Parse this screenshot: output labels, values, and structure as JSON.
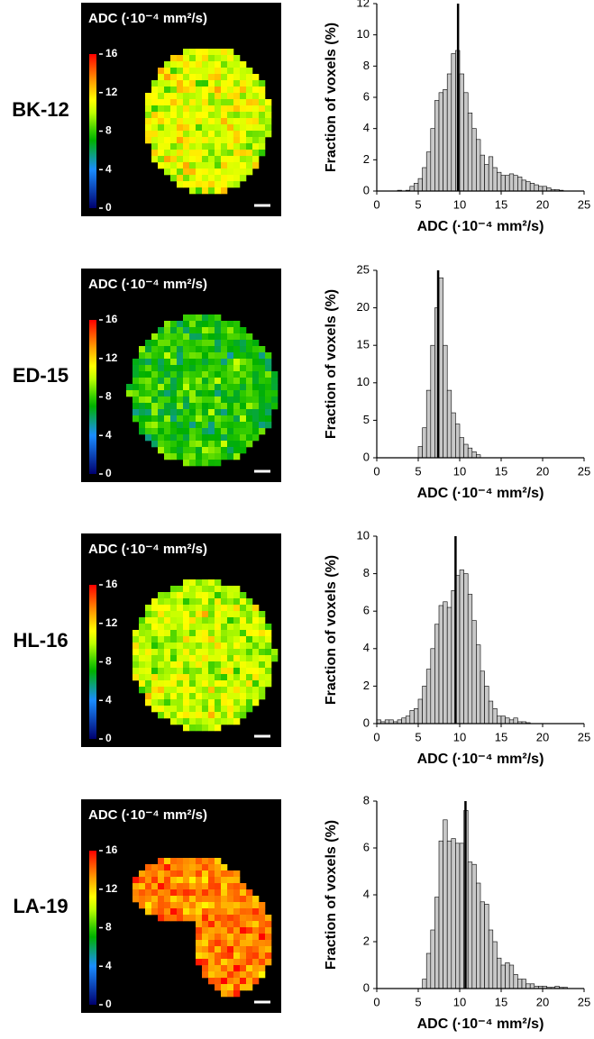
{
  "chart_data": [
    {
      "type": "histogram",
      "label": "BK-12",
      "map": {
        "title": "ADC (·10⁻⁴ mm²/s)",
        "colorbar_lim": [
          0,
          16
        ],
        "colorbar_ticks": [
          0,
          4,
          8,
          12,
          16
        ]
      },
      "xlabel": "ADC (·10⁻⁴ mm²/s)",
      "ylabel": "Fraction of voxels (%)",
      "color": "#c8c8c8",
      "bins": [
        2.5,
        3,
        3.5,
        4,
        4.5,
        5,
        5.5,
        6,
        6.5,
        7,
        7.5,
        8,
        8.5,
        9,
        9.5,
        10,
        10.5,
        11,
        11.5,
        12,
        12.5,
        13,
        13.5,
        14,
        14.5,
        15,
        15.5,
        16,
        16.5,
        17,
        17.5,
        18,
        18.5,
        19,
        19.5,
        20,
        20.5,
        21,
        21.5,
        22,
        22.5
      ],
      "values": [
        0.05,
        0,
        0.05,
        0.3,
        0.5,
        0.8,
        1.5,
        2.5,
        4,
        5.8,
        6.3,
        6.5,
        7.5,
        8.8,
        9,
        7.5,
        6.3,
        5,
        4,
        3.3,
        2.3,
        1.7,
        2.2,
        1.5,
        1.2,
        1,
        1,
        1.1,
        1,
        0.9,
        0.7,
        0.6,
        0.5,
        0.4,
        0.3,
        0.3,
        0.2,
        0.1,
        0.1,
        0.05
      ],
      "reference_line": 9.8,
      "xlim": [
        0,
        25
      ],
      "xticks": [
        0,
        5,
        10,
        15,
        20,
        25
      ],
      "ylim": [
        0,
        12
      ],
      "yticks": [
        0,
        2,
        4,
        6,
        8,
        10,
        12
      ]
    },
    {
      "type": "histogram",
      "label": "ED-15",
      "map": {
        "title": "ADC (·10⁻⁴ mm²/s)",
        "colorbar_lim": [
          0,
          16
        ],
        "colorbar_ticks": [
          0,
          4,
          8,
          12,
          16
        ]
      },
      "xlabel": "ADC (·10⁻⁴ mm²/s)",
      "ylabel": "Fraction of voxels (%)",
      "color": "#c8c8c8",
      "bins": [
        5,
        5.5,
        6,
        6.5,
        7,
        7.5,
        8,
        8.5,
        9,
        9.5,
        10,
        10.5,
        11,
        11.5,
        12,
        12.5
      ],
      "values": [
        1.5,
        4,
        9,
        15,
        20,
        24,
        15,
        9,
        6,
        4.5,
        2.7,
        1.8,
        1.3,
        0.8,
        0.4
      ],
      "reference_line": 7.4,
      "xlim": [
        0,
        25
      ],
      "xticks": [
        0,
        5,
        10,
        15,
        20,
        25
      ],
      "ylim": [
        0,
        25
      ],
      "yticks": [
        0,
        5,
        10,
        15,
        20,
        25
      ]
    },
    {
      "type": "histogram",
      "label": "HL-16",
      "map": {
        "title": "ADC (·10⁻⁴ mm²/s)",
        "colorbar_lim": [
          0,
          16
        ],
        "colorbar_ticks": [
          0,
          4,
          8,
          12,
          16
        ]
      },
      "xlabel": "ADC (·10⁻⁴ mm²/s)",
      "ylabel": "Fraction of voxels (%)",
      "color": "#c8c8c8",
      "bins": [
        0,
        0.5,
        1,
        1.5,
        2,
        2.5,
        3,
        3.5,
        4,
        4.5,
        5,
        5.5,
        6,
        6.5,
        7,
        7.5,
        8,
        8.5,
        9,
        9.5,
        10,
        10.5,
        11,
        11.5,
        12,
        12.5,
        13,
        13.5,
        14,
        14.5,
        15,
        15.5,
        16,
        16.5,
        17,
        17.5,
        18,
        18.5
      ],
      "values": [
        0.2,
        0.1,
        0.2,
        0.2,
        0.1,
        0.2,
        0.3,
        0.4,
        0.7,
        0.8,
        1.3,
        2,
        2.9,
        4,
        5.3,
        6.3,
        6.5,
        6.2,
        7.1,
        7.9,
        8.2,
        8,
        6.9,
        5.5,
        4.2,
        2.8,
        2,
        1.2,
        0.8,
        0.4,
        0.4,
        0.3,
        0.2,
        0.3,
        0.1,
        0.1,
        0.05
      ],
      "reference_line": 9.5,
      "xlim": [
        0,
        25
      ],
      "xticks": [
        0,
        5,
        10,
        15,
        20,
        25
      ],
      "ylim": [
        0,
        10
      ],
      "yticks": [
        0,
        2,
        4,
        6,
        8,
        10
      ]
    },
    {
      "type": "histogram",
      "label": "LA-19",
      "map": {
        "title": "ADC (·10⁻⁴ mm²/s)",
        "colorbar_lim": [
          0,
          16
        ],
        "colorbar_ticks": [
          0,
          4,
          8,
          12,
          16
        ]
      },
      "xlabel": "ADC (·10⁻⁴ mm²/s)",
      "ylabel": "Fraction of voxels (%)",
      "color": "#c8c8c8",
      "bins": [
        5.5,
        6,
        6.5,
        7,
        7.5,
        8,
        8.5,
        9,
        9.5,
        10,
        10.5,
        11,
        11.5,
        12,
        12.5,
        13,
        13.5,
        14,
        14.5,
        15,
        15.5,
        16,
        16.5,
        17,
        17.5,
        18,
        18.5,
        19,
        19.5,
        20,
        20.5,
        21,
        21.5,
        22,
        22.5,
        23
      ],
      "values": [
        0.4,
        1.5,
        2.5,
        3.9,
        6.3,
        7.2,
        6.3,
        6.4,
        6.2,
        6.2,
        7.6,
        5.4,
        5.3,
        4.5,
        3.7,
        3.6,
        2.5,
        2,
        1.3,
        1,
        1.1,
        1,
        0.6,
        0.4,
        0.4,
        0.2,
        0.2,
        0.1,
        0.1,
        0.1,
        0.05,
        0.05,
        0.1,
        0.05,
        0.05
      ],
      "reference_line": 10.7,
      "xlim": [
        0,
        25
      ],
      "xticks": [
        0,
        5,
        10,
        15,
        20,
        25
      ],
      "ylim": [
        0,
        8
      ],
      "yticks": [
        0,
        2,
        4,
        6,
        8
      ]
    }
  ]
}
